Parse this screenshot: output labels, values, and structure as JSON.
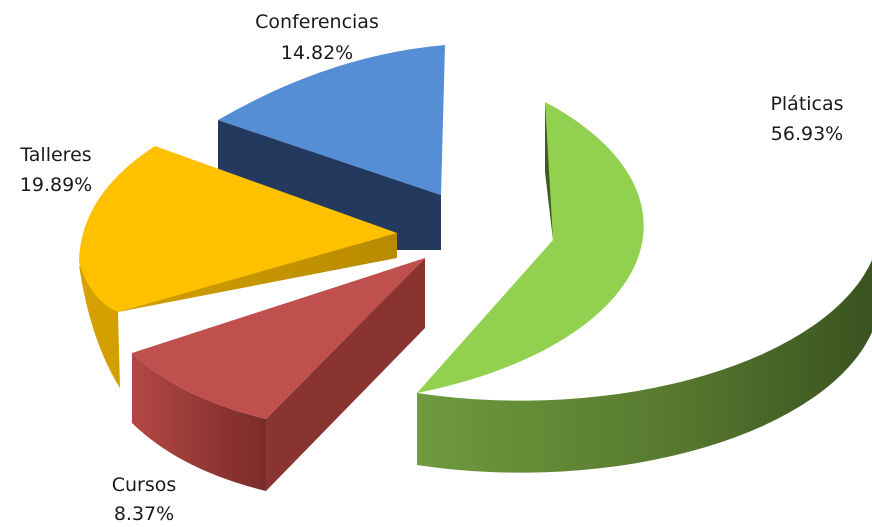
{
  "chart_data": {
    "type": "pie",
    "title": "",
    "categories": [
      "Pláticas",
      "Cursos",
      "Talleres",
      "Conferencias"
    ],
    "values": [
      56.93,
      8.37,
      19.89,
      14.82
    ],
    "value_labels": [
      "56.93%",
      "8.37%",
      "19.89%",
      "14.82%"
    ],
    "colors": [
      "#92D050",
      "#C0504D",
      "#FFC000",
      "#558ED5"
    ],
    "exploded": true,
    "style": "3d",
    "legend": "none"
  }
}
